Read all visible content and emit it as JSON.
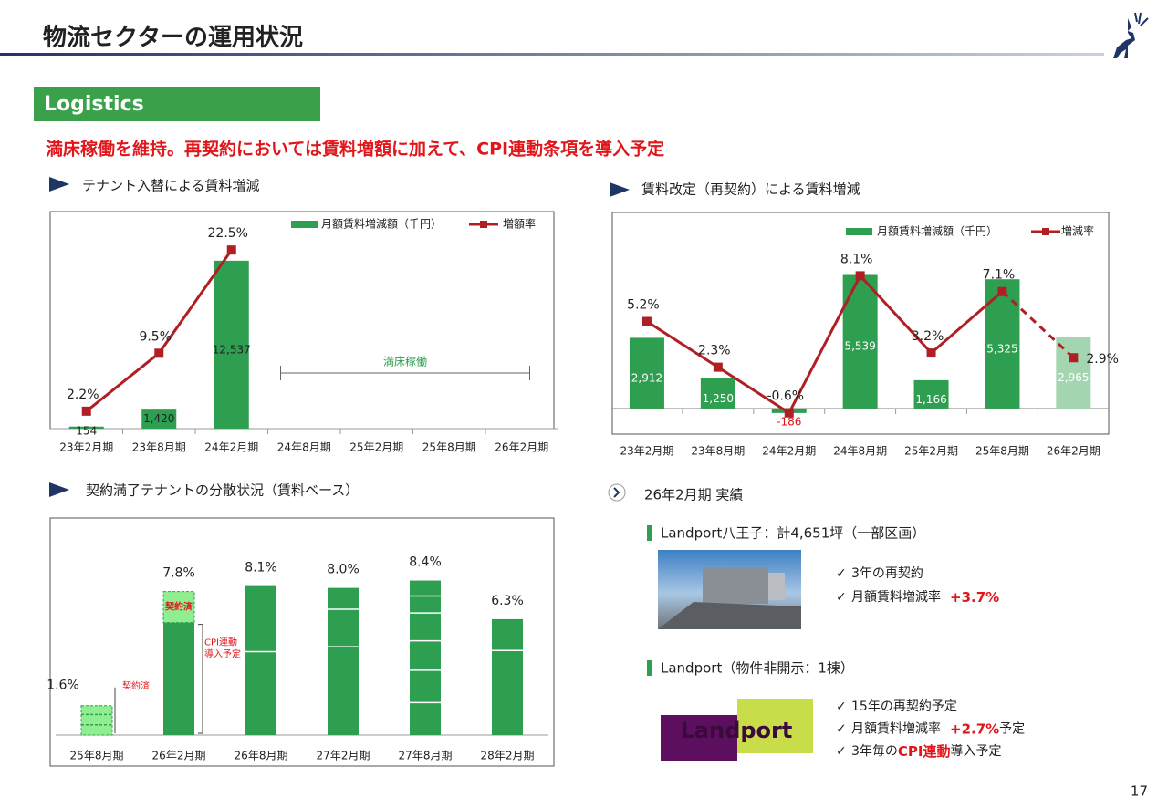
{
  "header": {
    "title": "物流セクターの運用状況",
    "section": "Logistics",
    "headline": "満床稼働を維持。再契約においては賃料増額に加えて、CPI連動条項を導入予定",
    "page": "17"
  },
  "headings": [
    "テナント入替による賃料増減",
    "賃料改定（再契約）による賃料増減",
    "契約満了テナントの分散状況（賃料ベース）"
  ],
  "chart_data": [
    {
      "type": "combo",
      "categories": [
        "23年2月期",
        "23年8月期",
        "24年2月期",
        "24年8月期",
        "25年2月期",
        "25年8月期",
        "26年2月期"
      ],
      "series": [
        {
          "name": "月額賃料増減額（千円）",
          "color": "#2e9e50",
          "values": [
            154,
            1420,
            12537,
            null,
            null,
            null,
            null
          ],
          "value_labels": [
            "154",
            "1,420",
            "12,537",
            null,
            null,
            null,
            null
          ]
        },
        {
          "name": "増額率",
          "axis": "y2",
          "color": "#b01f24",
          "values": [
            2.2,
            9.5,
            22.5,
            null,
            null,
            null,
            null
          ],
          "value_labels": [
            "2.2%",
            "9.5%",
            "22.5%",
            null,
            null,
            null,
            null
          ]
        }
      ],
      "ylim": [
        0,
        16000
      ],
      "y2lim": [
        0,
        27
      ],
      "annotation": "満床稼働"
    },
    {
      "type": "combo",
      "categories": [
        "23年2月期",
        "23年8月期",
        "24年2月期",
        "24年8月期",
        "25年2月期",
        "25年8月期",
        "26年2月期"
      ],
      "series": [
        {
          "name": "月額賃料増減額（千円）",
          "color": "#2e9e50",
          "values": [
            2912,
            1250,
            -186,
            5539,
            1166,
            5325,
            2965
          ],
          "value_labels": [
            "2,912",
            "1,250",
            "-186",
            "5,539",
            "1,166",
            "5,325",
            "2,965"
          ]
        },
        {
          "name": "増減率",
          "axis": "y2",
          "color": "#b01f24",
          "values": [
            5.2,
            2.3,
            -0.6,
            8.1,
            3.2,
            7.1,
            2.9
          ],
          "value_labels": [
            "5.2%",
            "2.3%",
            "-0.6%",
            "8.1%",
            "3.2%",
            "7.1%",
            "2.9%"
          ]
        }
      ],
      "ylim": [
        -830,
        8000
      ],
      "y2lim": [
        -1.6,
        12
      ],
      "forecast_index": 6,
      "forecast_color": "#a3d5b0"
    },
    {
      "type": "bar",
      "categories": [
        "25年8月期",
        "26年2月期",
        "26年8月期",
        "27年2月期",
        "27年8月期",
        "28年2月期"
      ],
      "values": [
        1.6,
        7.8,
        8.1,
        8.0,
        8.4,
        6.3
      ],
      "value_labels": [
        "1.6%",
        "7.8%",
        "8.1%",
        "8.0%",
        "8.4%",
        "6.3%"
      ],
      "color": "#2e9e50",
      "notes": [
        "契約済",
        "契約済",
        null,
        null,
        null,
        null
      ],
      "cpi_note": [
        "CPI連動",
        "導入予定"
      ],
      "ylim": [
        0,
        11.7
      ]
    }
  ],
  "results": {
    "title": "26年2月期 実績",
    "properties": [
      {
        "name": "Landport八王子：計4,651坪（一部区画）",
        "items": [
          {
            "text": "3年の再契約"
          },
          {
            "text": "月額賃料増減率",
            "em": "+3.7%"
          }
        ]
      },
      {
        "name": "Landport（物件非開示：1棟）",
        "logo": "Landport",
        "items": [
          {
            "text": "15年の再契約予定"
          },
          {
            "text": "月額賃料増減率",
            "em": "+2.7%",
            "after": "予定"
          },
          {
            "text": "3年毎の",
            "em": "CPI連動",
            "after": "導入予定"
          }
        ]
      }
    ]
  }
}
